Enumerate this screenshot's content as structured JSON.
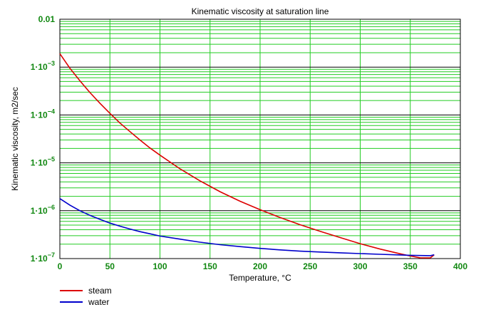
{
  "chart_data": {
    "type": "line",
    "title": "Kinematic viscosity at saturation line",
    "xlabel": "Temperature, °C",
    "ylabel": "Kinematic viscosity, m2/sec",
    "xlim": [
      0,
      400
    ],
    "ylim": [
      1e-07,
      0.01
    ],
    "yscale": "log",
    "grid": true,
    "legend_position": "bottom-left",
    "x_ticks": [
      "0",
      "50",
      "100",
      "150",
      "200",
      "250",
      "300",
      "350",
      "400"
    ],
    "y_ticks": [
      {
        "base": "1·10",
        "exp": "−7"
      },
      {
        "base": "1·10",
        "exp": "−6"
      },
      {
        "base": "1·10",
        "exp": "−5"
      },
      {
        "base": "1·10",
        "exp": "−4"
      },
      {
        "base": "1·10",
        "exp": "−3"
      },
      {
        "base": "0.01",
        "exp": ""
      }
    ],
    "series": [
      {
        "name": "steam",
        "color": "#dd0000",
        "x": [
          0.01,
          10,
          20,
          30,
          40,
          50,
          60,
          70,
          80,
          90,
          100,
          120,
          140,
          160,
          180,
          200,
          220,
          240,
          260,
          280,
          300,
          320,
          340,
          350,
          360,
          370,
          373.9
        ],
        "y": [
          0.00191,
          0.00095,
          0.000518,
          0.000294,
          0.000176,
          0.000108,
          6.8e-05,
          4.5e-05,
          3e-05,
          2.05e-05,
          1.45e-05,
          7.5e-06,
          4.2e-06,
          2.5e-06,
          1.58e-06,
          1.05e-06,
          7.2e-07,
          5.1e-07,
          3.7e-07,
          2.75e-07,
          2.05e-07,
          1.58e-07,
          1.26e-07,
          1.13e-07,
          1e-07,
          8.7e-08,
          1.2e-07
        ]
      },
      {
        "name": "water",
        "color": "#0000cc",
        "x": [
          0.01,
          10,
          20,
          30,
          40,
          50,
          60,
          70,
          80,
          90,
          100,
          120,
          140,
          160,
          180,
          200,
          220,
          240,
          260,
          280,
          300,
          320,
          340,
          350,
          360,
          370,
          373.9
        ],
        "y": [
          1.79e-06,
          1.31e-06,
          1e-06,
          8e-07,
          6.6e-07,
          5.5e-07,
          4.75e-07,
          4.15e-07,
          3.65e-07,
          3.3e-07,
          2.95e-07,
          2.55e-07,
          2.2e-07,
          1.95e-07,
          1.78e-07,
          1.63e-07,
          1.52e-07,
          1.43e-07,
          1.37e-07,
          1.32e-07,
          1.27e-07,
          1.23e-07,
          1.19e-07,
          1.17e-07,
          1.16e-07,
          1.15e-07,
          1.2e-07
        ]
      }
    ]
  }
}
